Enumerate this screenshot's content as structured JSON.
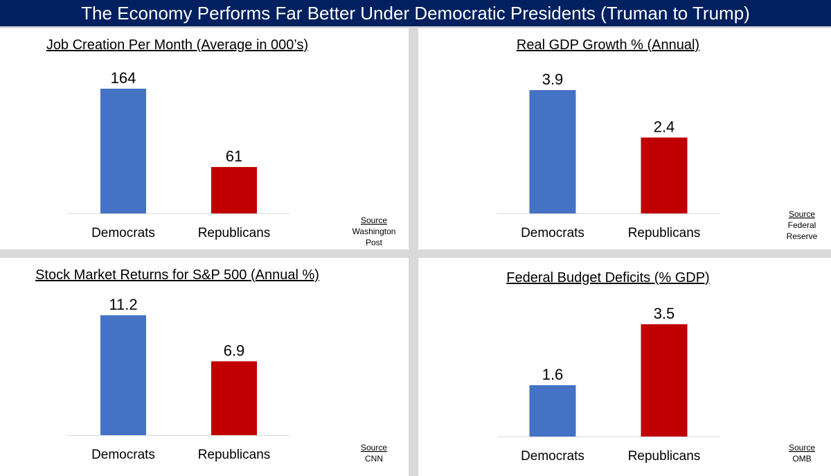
{
  "title": "The Economy Performs Far Better Under Democratic Presidents (Truman to Trump)",
  "colors": {
    "title_bg": "#002060",
    "democrats": "#4472c4",
    "republicans": "#c00000",
    "axis": "#d9d9d9"
  },
  "chart_data": [
    {
      "type": "bar",
      "title": "Job Creation Per Month (Average in 000’s)",
      "categories": [
        "Democrats",
        "Republicans"
      ],
      "values": [
        164,
        61
      ],
      "value_labels": [
        "164",
        "61"
      ],
      "ylim": [
        0,
        164
      ],
      "source_heading": "Source",
      "source_lines": [
        "Washington",
        "Post"
      ]
    },
    {
      "type": "bar",
      "title": "Real GDP Growth % (Annual)",
      "categories": [
        "Democrats",
        "Republicans"
      ],
      "values": [
        3.9,
        2.4
      ],
      "value_labels": [
        "3.9",
        "2.4"
      ],
      "ylim": [
        0,
        3.9
      ],
      "source_heading": "Source",
      "source_lines": [
        "Federal",
        "Reserve"
      ]
    },
    {
      "type": "bar",
      "title": "Stock Market Returns for S&P 500 (Annual %)",
      "categories": [
        "Democrats",
        "Republicans"
      ],
      "values": [
        11.2,
        6.9
      ],
      "value_labels": [
        "11.2",
        "6.9"
      ],
      "ylim": [
        0,
        11.2
      ],
      "source_heading": "Source",
      "source_lines": [
        "CNN"
      ]
    },
    {
      "type": "bar",
      "title": "Federal Budget Deficits (% GDP)",
      "categories": [
        "Democrats",
        "Republicans"
      ],
      "values": [
        1.6,
        3.5
      ],
      "value_labels": [
        "1.6",
        "3.5"
      ],
      "ylim": [
        0,
        3.5
      ],
      "source_heading": "Source",
      "source_lines": [
        "OMB"
      ]
    }
  ]
}
